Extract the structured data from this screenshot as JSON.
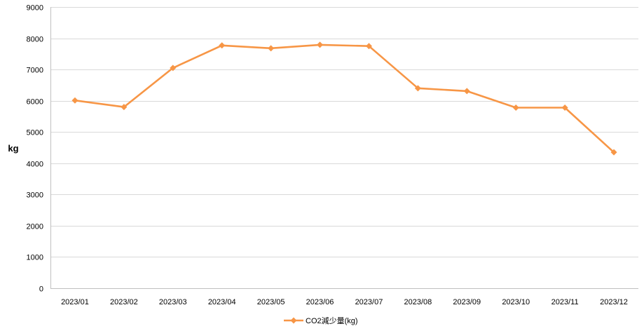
{
  "chart_data": {
    "type": "line",
    "title": "",
    "xlabel": "",
    "ylabel": "kg",
    "ylim": [
      0,
      9000
    ],
    "yticks": [
      "0",
      "1000",
      "2000",
      "3000",
      "4000",
      "5000",
      "6000",
      "7000",
      "8000",
      "9000"
    ],
    "categories": [
      "2023/01",
      "2023/02",
      "2023/03",
      "2023/04",
      "2023/05",
      "2023/06",
      "2023/07",
      "2023/08",
      "2023/09",
      "2023/10",
      "2023/11",
      "2023/12"
    ],
    "series": [
      {
        "name": "CO2減少量(kg)",
        "values": [
          6010,
          5800,
          7050,
          7770,
          7680,
          7790,
          7750,
          6400,
          6310,
          5780,
          5780,
          4350
        ]
      }
    ],
    "grid": true,
    "legend": "bottom",
    "colors": {
      "series": "#F79646",
      "grid": "#D9D9D9",
      "axis": "#BFBFBF"
    }
  }
}
